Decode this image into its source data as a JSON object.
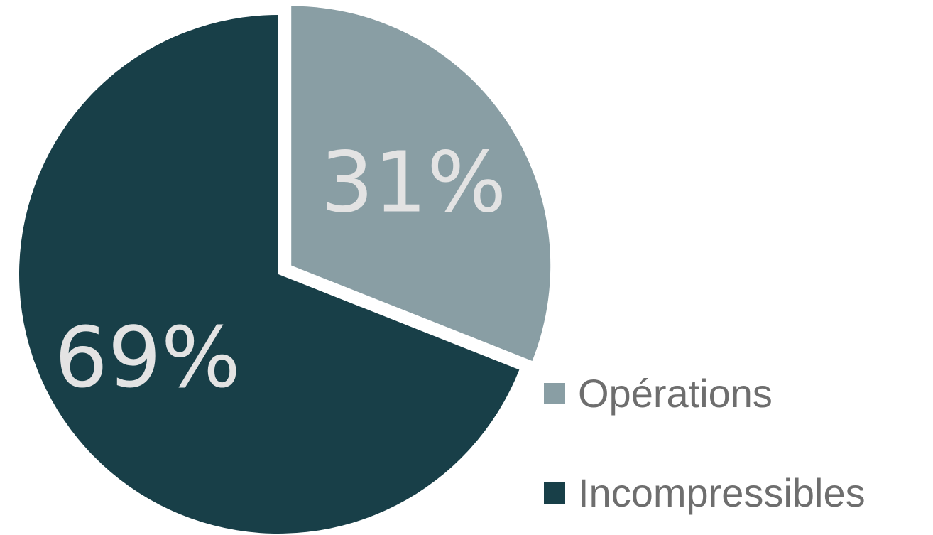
{
  "chart_data": {
    "type": "pie",
    "title": "",
    "categories": [
      "Opérations",
      "Incompressibles"
    ],
    "values": [
      31,
      69
    ],
    "value_labels": [
      "31%",
      "69%"
    ],
    "colors": [
      "#899ea4",
      "#183f48"
    ],
    "exploded": [
      "Opérations"
    ],
    "legend_position": "bottom-right"
  },
  "legend": {
    "items": [
      {
        "label": "Opérations",
        "color": "#899ea4"
      },
      {
        "label": "Incompressibles",
        "color": "#183f48"
      }
    ]
  }
}
